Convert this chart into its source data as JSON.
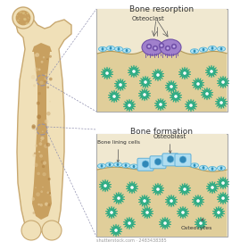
{
  "bg_color": "#ffffff",
  "bone_outer_color": "#f0e0b8",
  "bone_inner_color": "#c8a060",
  "bone_cortex_color": "#e8d0a0",
  "panel_bg_color": "#f0e8d0",
  "panel_border_color": "#aaaaaa",
  "title_resorption": "Bone resorption",
  "title_formation": "Bone formation",
  "osteoclast_color": "#a080cc",
  "osteoclast_dark": "#7050a8",
  "osteoclast_light": "#c0a8e8",
  "osteoblast_color": "#b0ddf0",
  "osteoblast_border": "#60b0d8",
  "osteoblast_nucleus": "#3088b8",
  "osteocyte_color": "#50c8a8",
  "osteocyte_outline": "#28a880",
  "osteocyte_center": "#28a880",
  "lining_cell_color": "#b8e8f8",
  "lining_cell_border": "#60b8d8",
  "lining_cell_nucleus": "#3090b8",
  "bone_surface_color": "#d8c090",
  "bone_surface_fill": "#e0cc98",
  "annotation_color": "#555555",
  "dashed_line_color": "#8888aa",
  "watermark": "shutterstock.com · 2483438385"
}
